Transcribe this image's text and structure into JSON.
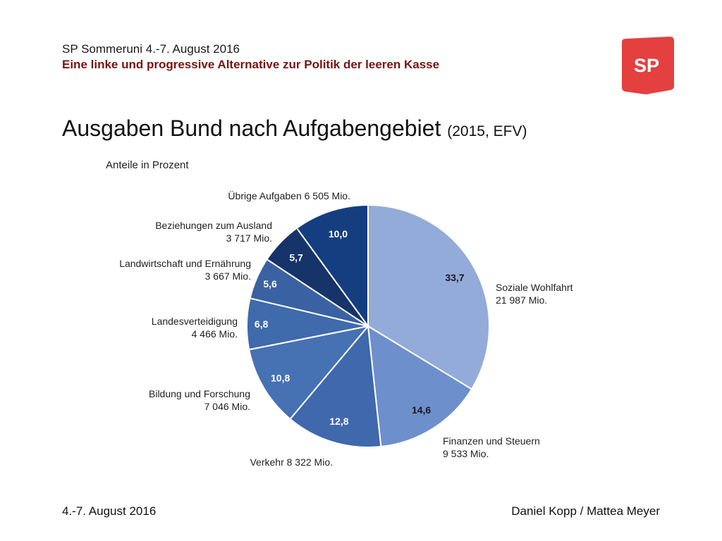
{
  "header": {
    "event": "SP Sommeruni 4.-7. August 2016",
    "subtitle": "Eine linke und progressive Alternative zur Politik der leeren Kasse"
  },
  "logo": {
    "text": "SP",
    "color": "#e3403f"
  },
  "slide": {
    "title": "Ausgaben Bund nach Aufgabengebiet",
    "title_suffix": "(2015, EFV)"
  },
  "chart_data": {
    "type": "pie",
    "title": "Anteile in Prozent",
    "slices": [
      {
        "value": 33.7,
        "label": "33,7",
        "category": [
          "Soziale Wohlfahrt",
          "21 987 Mio."
        ],
        "color": "#93abd9"
      },
      {
        "value": 14.6,
        "label": "14,6",
        "category": [
          "Finanzen und Steuern",
          "9 533 Mio."
        ],
        "color": "#6d8fcc"
      },
      {
        "value": 12.8,
        "label": "12,8",
        "category": [
          "Verkehr 8 322 Mio."
        ],
        "color": "#3f68ad"
      },
      {
        "value": 10.8,
        "label": "10,8",
        "category": [
          "Bildung und Forschung",
          "7 046 Mio."
        ],
        "color": "#4671b3"
      },
      {
        "value": 6.8,
        "label": "6,8",
        "category": [
          "Landesverteidigung",
          "4 466 Mio."
        ],
        "color": "#3f6aab"
      },
      {
        "value": 5.6,
        "label": "5,6",
        "category": [
          "Landwirtschaft und Ernährung",
          "3 667 Mio."
        ],
        "color": "#3a62a2"
      },
      {
        "value": 5.7,
        "label": "5,7",
        "category": [
          "Beziehungen zum Ausland",
          "3 717 Mio."
        ],
        "color": "#16336a"
      },
      {
        "value": 10.0,
        "label": "10,0",
        "category": [
          "Übrige Aufgaben 6 505 Mio."
        ],
        "color": "#143e80"
      }
    ]
  },
  "footer": {
    "date": "4.-7. August 2016",
    "authors": "Daniel Kopp / Mattea Meyer"
  }
}
